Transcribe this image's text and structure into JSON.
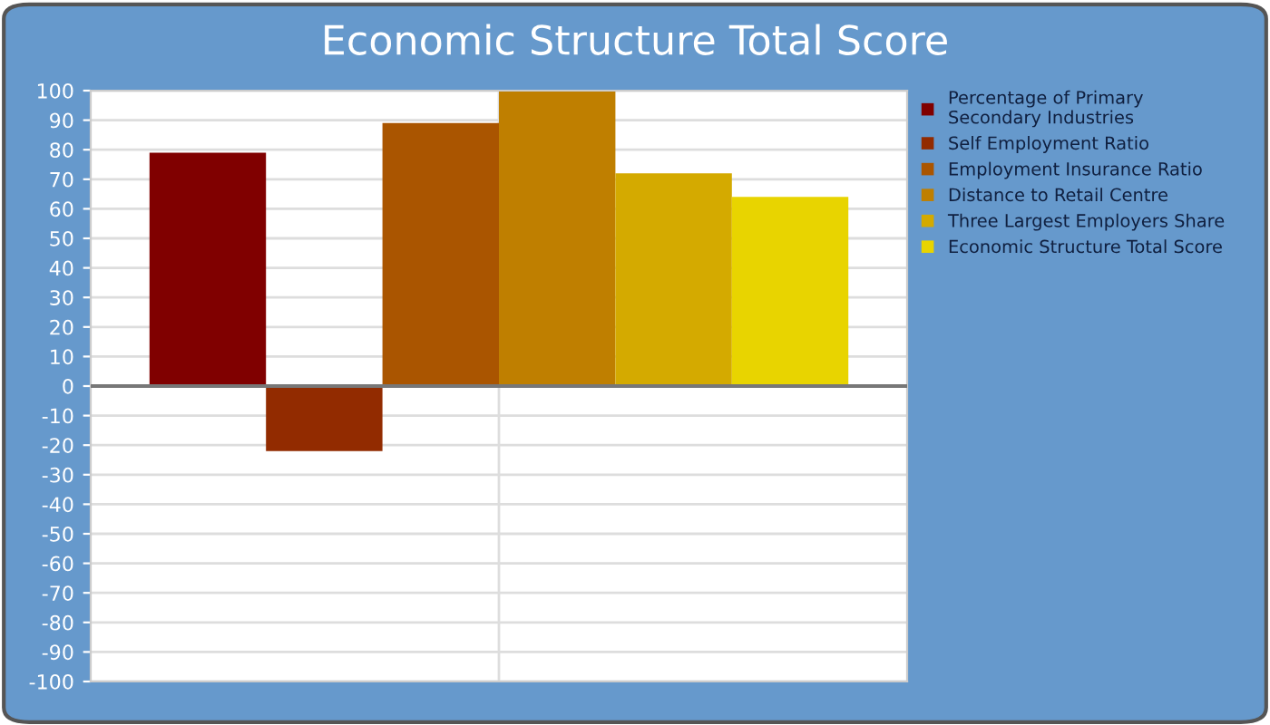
{
  "chart_data": {
    "type": "bar",
    "title": "Economic Structure Total Score",
    "categories": [
      null
    ],
    "series": [
      {
        "name": "Percentage of Primary Secondary Industries",
        "color": "#800000",
        "values": [
          79
        ]
      },
      {
        "name": "Self Employment Ratio",
        "color": "#922b00",
        "values": [
          -22
        ]
      },
      {
        "name": "Employment Insurance Ratio",
        "color": "#aa5500",
        "values": [
          89
        ]
      },
      {
        "name": "Distance to Retail Centre",
        "color": "#bf7f00",
        "values": [
          100
        ]
      },
      {
        "name": "Three Largest Employers Share",
        "color": "#d4aa00",
        "values": [
          72
        ]
      },
      {
        "name": "Economic Structure Total Score",
        "color": "#e8d400",
        "values": [
          64
        ]
      }
    ],
    "ylim": [
      -100,
      100
    ],
    "yticks": [
      -100,
      -90,
      -80,
      -70,
      -60,
      -50,
      -40,
      -30,
      -20,
      -10,
      0,
      10,
      20,
      30,
      40,
      50,
      60,
      70,
      80,
      90,
      100
    ],
    "grid": true,
    "legend": "right"
  }
}
